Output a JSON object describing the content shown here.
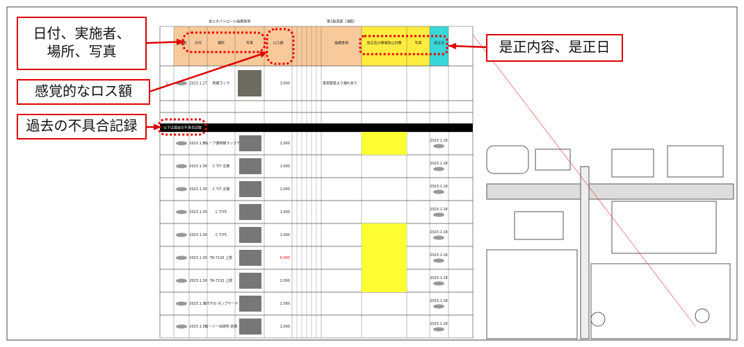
{
  "callouts": [
    {
      "lines": [
        "日付、実施者、",
        "場所、写真"
      ]
    },
    {
      "lines": [
        "感覚的なロス額"
      ]
    },
    {
      "lines": [
        "過去の不具合記録"
      ]
    },
    {
      "lines": [
        "是正内容、是正日"
      ]
    }
  ],
  "sheet": {
    "title": "省エネパトロール指摘事項",
    "department": "第1製造部（油脂）",
    "headers": [
      "日付",
      "実施者",
      "場所",
      "写真",
      "ロス額",
      "指摘事項",
      "是正及び再発防止対策",
      "写真",
      "是正日"
    ],
    "current_row": {
      "no": "1",
      "date": "2023.1.27",
      "place": "熱媒ラック",
      "amount": "3,000",
      "issue": "蒸気配管より漏れあり"
    },
    "history_banner": "以下は過去の不具合記録",
    "history_rows": [
      {
        "date": "2023.1.30",
        "place": "チューブ側熱媒ラック下",
        "amount": "2,000",
        "fix_date": "2023.1.18"
      },
      {
        "date": "2023.1.30",
        "place": "C T/Y 北側",
        "amount": "1,000",
        "fix_date": "2023.1.18"
      },
      {
        "date": "2023.1.30",
        "place": "C T/Y 北側",
        "amount": "2,000",
        "fix_date": "2023.1.18"
      },
      {
        "date": "2023.1.30",
        "place": "C T/Y5",
        "amount": "1,000",
        "fix_date": "2023.1.18"
      },
      {
        "date": "2023.1.30",
        "place": "C T/Y5",
        "amount": "1,000",
        "fix_date": "2023.1.18"
      },
      {
        "date": "2023.1.30",
        "place": "TA-7120 上部",
        "amount": "5,000",
        "fix_date": "2023.1.18"
      },
      {
        "date": "2023.1.30",
        "place": "TA-7132 上部",
        "amount": "2,000",
        "fix_date": "2023.1.18"
      },
      {
        "date": "2023.1.30",
        "place": "C T/Yの ポンプヤード",
        "amount": "2,000",
        "fix_date": "2023.1.18"
      },
      {
        "date": "2023.1.30",
        "place": "ローリー出荷所 前側",
        "amount": "1,000",
        "fix_date": "2023.1.18"
      }
    ]
  }
}
